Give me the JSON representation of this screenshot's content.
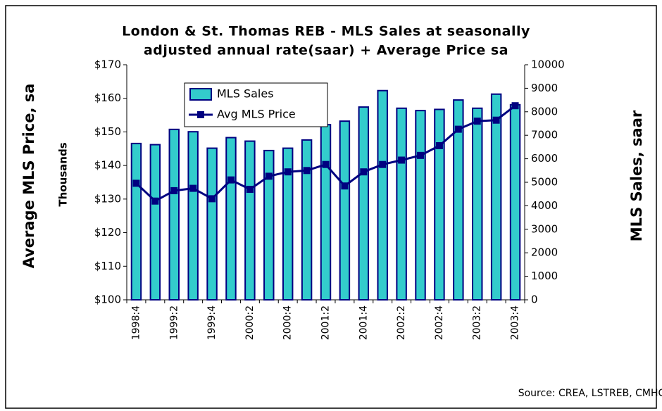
{
  "chart_data": {
    "type": "combo",
    "title": [
      "London & St. Thomas REB - MLS Sales at seasonally",
      "adjusted annual rate(saar) + Average Price sa"
    ],
    "y_label": "Average MLS Price, sa",
    "y_unit_label": "Thousands",
    "y2_label": "MLS Sales, saar",
    "source": "Source: CREA, LSTREB, CMHC",
    "categories": [
      "1998:4",
      null,
      "1999:2",
      null,
      "1999:4",
      null,
      "2000:2",
      null,
      "2000:4",
      null,
      "2001:2",
      null,
      "2001:4",
      null,
      "2002:2",
      null,
      "2002:4",
      null,
      "2003:2",
      null,
      "2003:4"
    ],
    "series": [
      {
        "name": "MLS Sales",
        "type": "bar",
        "axis": "y2",
        "color": "#33cccc",
        "values": [
          6650,
          6600,
          7250,
          7150,
          6450,
          6900,
          6750,
          6350,
          6450,
          6800,
          7450,
          7600,
          8200,
          8900,
          8150,
          8050,
          8100,
          8500,
          8150,
          8750,
          8300
        ]
      },
      {
        "name": "Avg MLS Price",
        "type": "line",
        "color": "#000080",
        "values": [
          134.7,
          129.4,
          132.5,
          133.2,
          130.1,
          135.7,
          132.9,
          136.8,
          138.1,
          138.5,
          140.3,
          133.9,
          138.1,
          140.3,
          141.6,
          143.0,
          145.9,
          150.8,
          153.2,
          153.5,
          157.8
        ]
      }
    ],
    "ylim": [
      100,
      170
    ],
    "yticks": [
      {
        "value": 100,
        "label": "$100"
      },
      {
        "value": 110,
        "label": "$110"
      },
      {
        "value": 120,
        "label": "$120"
      },
      {
        "value": 130,
        "label": "$130"
      },
      {
        "value": 140,
        "label": "$140"
      },
      {
        "value": 150,
        "label": "$150"
      },
      {
        "value": 160,
        "label": "$160"
      },
      {
        "value": 170,
        "label": "$170"
      }
    ],
    "y2lim": [
      0,
      10000
    ],
    "y2ticks": [
      0,
      1000,
      2000,
      3000,
      4000,
      5000,
      6000,
      7000,
      8000,
      9000,
      10000
    ],
    "grid": false,
    "legend": "top-left"
  }
}
